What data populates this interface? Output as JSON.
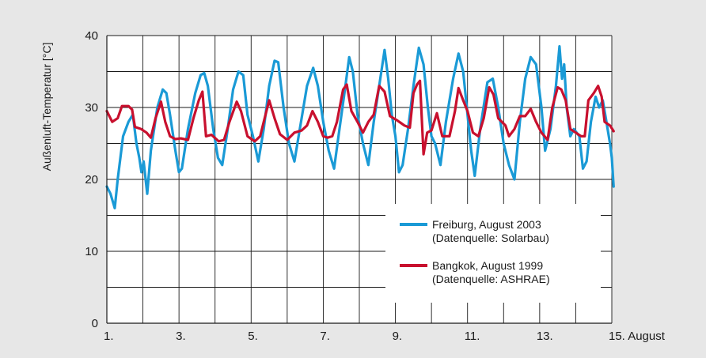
{
  "chart_data": {
    "type": "line",
    "title": "",
    "xlabel": "",
    "ylabel": "Außenluft-Temperatur [°C]",
    "ylim": [
      0,
      40
    ],
    "xlim": [
      1,
      15
    ],
    "y_ticks": [
      "0",
      "10",
      "20",
      "30",
      "40"
    ],
    "x_ticks": [
      {
        "value": 1,
        "label": "1."
      },
      {
        "value": 3,
        "label": "3."
      },
      {
        "value": 5,
        "label": "5."
      },
      {
        "value": 7,
        "label": "7."
      },
      {
        "value": 9,
        "label": "9."
      },
      {
        "value": 11,
        "label": "11."
      },
      {
        "value": 13,
        "label": "13."
      },
      {
        "value": 15,
        "label": "15. August"
      }
    ],
    "grid": true,
    "legend_position": "bottom-right",
    "series": [
      {
        "name": "Freiburg, August 2003",
        "source": "(Datenquelle: Solarbau)",
        "color": "#1a9ad6",
        "points": [
          [
            1.0,
            19.0
          ],
          [
            1.1,
            18.0
          ],
          [
            1.22,
            16.0
          ],
          [
            1.3,
            20.0
          ],
          [
            1.45,
            26.0
          ],
          [
            1.6,
            28.0
          ],
          [
            1.72,
            29.0
          ],
          [
            1.82,
            25.0
          ],
          [
            1.9,
            23.0
          ],
          [
            1.96,
            21.0
          ],
          [
            2.02,
            22.5
          ],
          [
            2.12,
            18.0
          ],
          [
            2.22,
            24.0
          ],
          [
            2.4,
            30.0
          ],
          [
            2.55,
            32.5
          ],
          [
            2.65,
            32.0
          ],
          [
            2.75,
            29.0
          ],
          [
            2.9,
            24.0
          ],
          [
            3.0,
            21.0
          ],
          [
            3.08,
            21.5
          ],
          [
            3.25,
            27.0
          ],
          [
            3.45,
            32.0
          ],
          [
            3.6,
            34.5
          ],
          [
            3.7,
            34.8
          ],
          [
            3.8,
            33.0
          ],
          [
            3.95,
            27.0
          ],
          [
            4.08,
            23.0
          ],
          [
            4.2,
            22.0
          ],
          [
            4.35,
            27.0
          ],
          [
            4.5,
            32.5
          ],
          [
            4.65,
            35.0
          ],
          [
            4.78,
            34.5
          ],
          [
            4.9,
            29.0
          ],
          [
            5.05,
            26.0
          ],
          [
            5.2,
            22.5
          ],
          [
            5.35,
            27.0
          ],
          [
            5.5,
            33.0
          ],
          [
            5.65,
            36.5
          ],
          [
            5.75,
            36.3
          ],
          [
            5.9,
            30.0
          ],
          [
            6.05,
            25.0
          ],
          [
            6.2,
            22.5
          ],
          [
            6.35,
            27.0
          ],
          [
            6.55,
            33.0
          ],
          [
            6.72,
            35.5
          ],
          [
            6.85,
            33.0
          ],
          [
            7.0,
            28.0
          ],
          [
            7.15,
            24.0
          ],
          [
            7.3,
            21.5
          ],
          [
            7.45,
            27.0
          ],
          [
            7.6,
            32.5
          ],
          [
            7.72,
            37.0
          ],
          [
            7.82,
            35.0
          ],
          [
            7.95,
            29.0
          ],
          [
            8.1,
            25.0
          ],
          [
            8.25,
            22.0
          ],
          [
            8.4,
            28.0
          ],
          [
            8.55,
            33.0
          ],
          [
            8.7,
            38.0
          ],
          [
            8.8,
            34.0
          ],
          [
            8.9,
            29.0
          ],
          [
            9.0,
            26.0
          ],
          [
            9.1,
            21.0
          ],
          [
            9.2,
            22.0
          ],
          [
            9.35,
            27.0
          ],
          [
            9.5,
            33.0
          ],
          [
            9.65,
            38.3
          ],
          [
            9.78,
            36.0
          ],
          [
            9.9,
            30.0
          ],
          [
            10.0,
            26.0
          ],
          [
            10.1,
            25.0
          ],
          [
            10.25,
            22.0
          ],
          [
            10.4,
            28.0
          ],
          [
            10.6,
            34.0
          ],
          [
            10.75,
            37.5
          ],
          [
            10.88,
            35.0
          ],
          [
            11.0,
            29.0
          ],
          [
            11.1,
            24.0
          ],
          [
            11.2,
            20.5
          ],
          [
            11.35,
            27.0
          ],
          [
            11.55,
            33.5
          ],
          [
            11.7,
            34.0
          ],
          [
            11.85,
            30.0
          ],
          [
            12.0,
            25.0
          ],
          [
            12.15,
            22.0
          ],
          [
            12.3,
            20.0
          ],
          [
            12.45,
            28.0
          ],
          [
            12.6,
            34.0
          ],
          [
            12.75,
            37.0
          ],
          [
            12.9,
            36.0
          ],
          [
            13.05,
            30.0
          ],
          [
            13.15,
            24.0
          ],
          [
            13.3,
            27.0
          ],
          [
            13.45,
            33.0
          ],
          [
            13.55,
            38.5
          ],
          [
            13.62,
            34.0
          ],
          [
            13.68,
            36.0
          ],
          [
            13.75,
            30.0
          ],
          [
            13.85,
            26.0
          ],
          [
            13.95,
            27.0
          ],
          [
            14.1,
            26.0
          ],
          [
            14.2,
            21.5
          ],
          [
            14.3,
            22.5
          ],
          [
            14.42,
            28.0
          ],
          [
            14.55,
            31.5
          ],
          [
            14.65,
            30.0
          ],
          [
            14.75,
            31.0
          ],
          [
            14.85,
            28.0
          ],
          [
            14.95,
            25.0
          ],
          [
            15.0,
            23.0
          ],
          [
            15.05,
            19.0
          ]
        ]
      },
      {
        "name": "Bangkok, August 1999",
        "source": "(Datenquelle: ASHRAE)",
        "color": "#c8102e",
        "points": [
          [
            1.0,
            29.5
          ],
          [
            1.15,
            28.0
          ],
          [
            1.3,
            28.5
          ],
          [
            1.42,
            30.2
          ],
          [
            1.6,
            30.2
          ],
          [
            1.7,
            29.7
          ],
          [
            1.78,
            27.3
          ],
          [
            1.95,
            27.0
          ],
          [
            2.1,
            26.5
          ],
          [
            2.22,
            25.8
          ],
          [
            2.35,
            28.5
          ],
          [
            2.5,
            30.8
          ],
          [
            2.62,
            28.0
          ],
          [
            2.75,
            26.0
          ],
          [
            2.9,
            25.6
          ],
          [
            3.05,
            25.7
          ],
          [
            3.25,
            25.5
          ],
          [
            3.4,
            28.5
          ],
          [
            3.55,
            31.0
          ],
          [
            3.65,
            32.2
          ],
          [
            3.75,
            26.0
          ],
          [
            3.9,
            26.2
          ],
          [
            4.1,
            25.3
          ],
          [
            4.25,
            25.5
          ],
          [
            4.4,
            28.0
          ],
          [
            4.6,
            30.8
          ],
          [
            4.72,
            29.5
          ],
          [
            4.9,
            26.0
          ],
          [
            5.1,
            25.3
          ],
          [
            5.25,
            26.0
          ],
          [
            5.35,
            28.0
          ],
          [
            5.5,
            31.0
          ],
          [
            5.65,
            28.5
          ],
          [
            5.8,
            26.3
          ],
          [
            6.0,
            25.5
          ],
          [
            6.2,
            26.5
          ],
          [
            6.4,
            26.8
          ],
          [
            6.55,
            27.5
          ],
          [
            6.7,
            29.5
          ],
          [
            6.85,
            28.0
          ],
          [
            7.0,
            26.0
          ],
          [
            7.12,
            25.8
          ],
          [
            7.25,
            26.0
          ],
          [
            7.38,
            28.0
          ],
          [
            7.55,
            32.5
          ],
          [
            7.65,
            33.2
          ],
          [
            7.78,
            29.5
          ],
          [
            7.95,
            28.0
          ],
          [
            8.1,
            26.5
          ],
          [
            8.25,
            28.0
          ],
          [
            8.4,
            29.0
          ],
          [
            8.55,
            33.0
          ],
          [
            8.7,
            32.2
          ],
          [
            8.85,
            28.8
          ],
          [
            9.05,
            28.2
          ],
          [
            9.25,
            27.5
          ],
          [
            9.4,
            27.2
          ],
          [
            9.5,
            32.0
          ],
          [
            9.6,
            33.2
          ],
          [
            9.68,
            33.7
          ],
          [
            9.78,
            23.5
          ],
          [
            9.88,
            26.5
          ],
          [
            10.0,
            26.8
          ],
          [
            10.15,
            29.2
          ],
          [
            10.3,
            26.0
          ],
          [
            10.5,
            26.0
          ],
          [
            10.65,
            29.5
          ],
          [
            10.75,
            32.7
          ],
          [
            10.88,
            31.0
          ],
          [
            11.0,
            29.5
          ],
          [
            11.15,
            26.5
          ],
          [
            11.3,
            26.0
          ],
          [
            11.45,
            28.5
          ],
          [
            11.6,
            32.8
          ],
          [
            11.72,
            31.8
          ],
          [
            11.85,
            28.5
          ],
          [
            12.05,
            27.5
          ],
          [
            12.15,
            26.0
          ],
          [
            12.3,
            27.0
          ],
          [
            12.45,
            28.8
          ],
          [
            12.6,
            28.8
          ],
          [
            12.75,
            29.8
          ],
          [
            12.9,
            28.0
          ],
          [
            13.05,
            26.5
          ],
          [
            13.22,
            25.5
          ],
          [
            13.35,
            30.0
          ],
          [
            13.5,
            32.8
          ],
          [
            13.6,
            32.5
          ],
          [
            13.72,
            31.0
          ],
          [
            13.85,
            27.0
          ],
          [
            14.0,
            26.5
          ],
          [
            14.15,
            26.0
          ],
          [
            14.25,
            26.0
          ],
          [
            14.35,
            31.0
          ],
          [
            14.5,
            32.0
          ],
          [
            14.62,
            33.0
          ],
          [
            14.72,
            31.5
          ],
          [
            14.8,
            28.0
          ],
          [
            14.95,
            27.5
          ],
          [
            15.05,
            26.7
          ]
        ]
      }
    ]
  }
}
